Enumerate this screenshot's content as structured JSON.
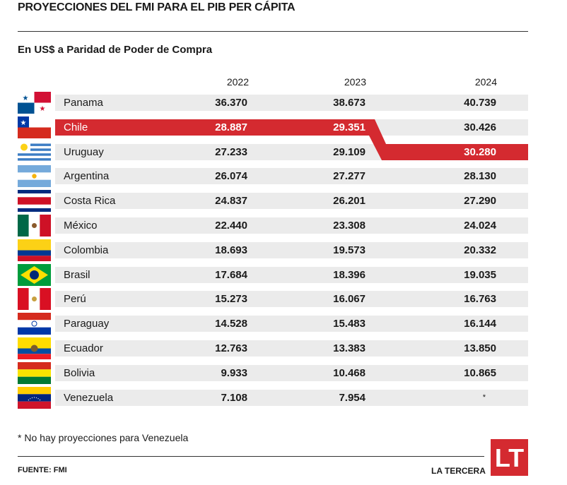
{
  "title": "PROYECCIONES DEL FMI PARA EL PIB PER CÁPITA",
  "subtitle": "En US$ a Paridad de Poder de Compra",
  "footnote": "* No hay proyecciones para Venezuela",
  "source": "FUENTE: FMI",
  "brand": "LA TERCERA",
  "logo_text": "LT",
  "highlight_color": "#d42a30",
  "chart_data": {
    "type": "table",
    "title": "PROYECCIONES DEL FMI PARA EL PIB PER CÁPITA",
    "subtitle": "En US$ a Paridad de Poder de Compra",
    "columns": [
      "2022",
      "2023",
      "2024"
    ],
    "highlight": "Chile",
    "rows": [
      {
        "country": "Panama",
        "values": [
          "36.370",
          "38.673",
          "40.739"
        ],
        "highlight": [
          false,
          false,
          false
        ]
      },
      {
        "country": "Chile",
        "values": [
          "28.887",
          "29.351",
          "30.426"
        ],
        "highlight": [
          true,
          true,
          false
        ]
      },
      {
        "country": "Uruguay",
        "values": [
          "27.233",
          "29.109",
          "30.280"
        ],
        "highlight": [
          false,
          false,
          true
        ]
      },
      {
        "country": "Argentina",
        "values": [
          "26.074",
          "27.277",
          "28.130"
        ],
        "highlight": [
          false,
          false,
          false
        ]
      },
      {
        "country": "Costa Rica",
        "values": [
          "24.837",
          "26.201",
          "27.290"
        ],
        "highlight": [
          false,
          false,
          false
        ]
      },
      {
        "country": "México",
        "values": [
          "22.440",
          "23.308",
          "24.024"
        ],
        "highlight": [
          false,
          false,
          false
        ]
      },
      {
        "country": "Colombia",
        "values": [
          "18.693",
          "19.573",
          "20.332"
        ],
        "highlight": [
          false,
          false,
          false
        ]
      },
      {
        "country": "Brasil",
        "values": [
          "17.684",
          "18.396",
          "19.035"
        ],
        "highlight": [
          false,
          false,
          false
        ]
      },
      {
        "country": "Perú",
        "values": [
          "15.273",
          "16.067",
          "16.763"
        ],
        "highlight": [
          false,
          false,
          false
        ]
      },
      {
        "country": "Paraguay",
        "values": [
          "14.528",
          "15.483",
          "16.144"
        ],
        "highlight": [
          false,
          false,
          false
        ]
      },
      {
        "country": "Ecuador",
        "values": [
          "12.763",
          "13.383",
          "13.850"
        ],
        "highlight": [
          false,
          false,
          false
        ]
      },
      {
        "country": "Bolivia",
        "values": [
          "9.933",
          "10.468",
          "10.865"
        ],
        "highlight": [
          false,
          false,
          false
        ]
      },
      {
        "country": "Venezuela",
        "values": [
          "7.108",
          "7.954",
          "*"
        ],
        "highlight": [
          false,
          false,
          false
        ]
      }
    ]
  },
  "flags": [
    {
      "icon": "panama-flag-icon"
    },
    {
      "icon": "chile-flag-icon"
    },
    {
      "icon": "uruguay-flag-icon"
    },
    {
      "icon": "argentina-flag-icon"
    },
    {
      "icon": "costa-rica-flag-icon"
    },
    {
      "icon": "mexico-flag-icon"
    },
    {
      "icon": "colombia-flag-icon"
    },
    {
      "icon": "brasil-flag-icon"
    },
    {
      "icon": "peru-flag-icon"
    },
    {
      "icon": "paraguay-flag-icon"
    },
    {
      "icon": "ecuador-flag-icon"
    },
    {
      "icon": "bolivia-flag-icon"
    },
    {
      "icon": "venezuela-flag-icon"
    }
  ]
}
